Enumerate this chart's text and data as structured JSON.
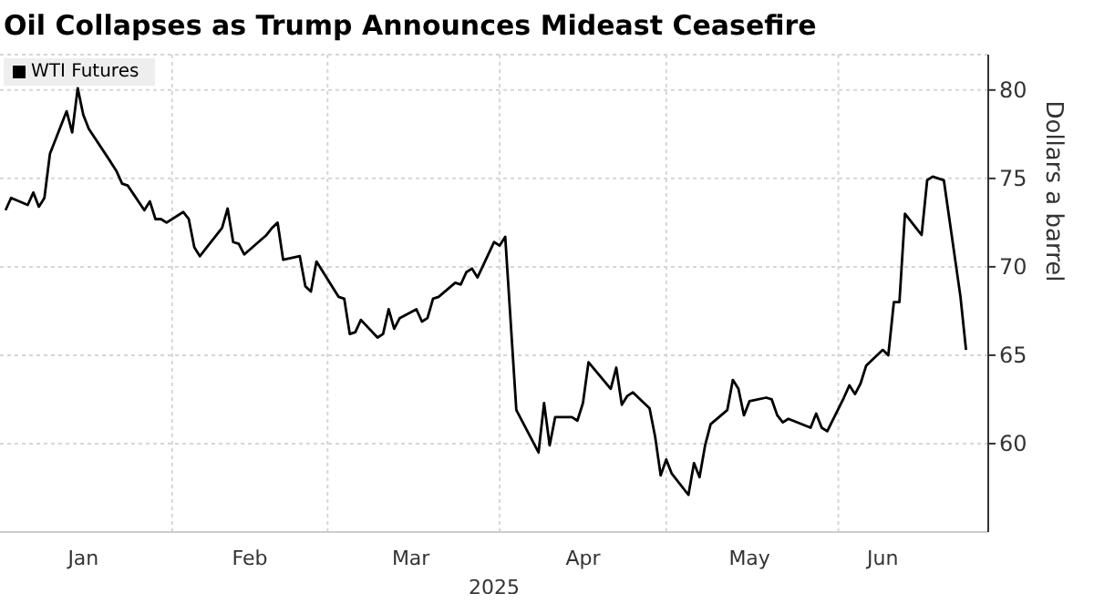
{
  "chart_data": {
    "type": "line",
    "title": "Oil Collapses as Trump Announces Mideast Ceasefire",
    "xlabel": "2025",
    "ylabel": "Dollars a barrel",
    "x": [
      "2025-01-02",
      "2025-01-03",
      "2025-01-06",
      "2025-01-07",
      "2025-01-08",
      "2025-01-09",
      "2025-01-10",
      "2025-01-13",
      "2025-01-14",
      "2025-01-15",
      "2025-01-16",
      "2025-01-17",
      "2025-01-21",
      "2025-01-22",
      "2025-01-23",
      "2025-01-24",
      "2025-01-27",
      "2025-01-28",
      "2025-01-29",
      "2025-01-30",
      "2025-01-31",
      "2025-02-03",
      "2025-02-04",
      "2025-02-05",
      "2025-02-06",
      "2025-02-07",
      "2025-02-10",
      "2025-02-11",
      "2025-02-12",
      "2025-02-13",
      "2025-02-14",
      "2025-02-18",
      "2025-02-19",
      "2025-02-20",
      "2025-02-21",
      "2025-02-24",
      "2025-02-25",
      "2025-02-26",
      "2025-02-27",
      "2025-02-28",
      "2025-03-03",
      "2025-03-04",
      "2025-03-05",
      "2025-03-06",
      "2025-03-07",
      "2025-03-10",
      "2025-03-11",
      "2025-03-12",
      "2025-03-13",
      "2025-03-14",
      "2025-03-17",
      "2025-03-18",
      "2025-03-19",
      "2025-03-20",
      "2025-03-21",
      "2025-03-24",
      "2025-03-25",
      "2025-03-26",
      "2025-03-27",
      "2025-03-28",
      "2025-03-31",
      "2025-04-01",
      "2025-04-02",
      "2025-04-04",
      "2025-04-08",
      "2025-04-09",
      "2025-04-10",
      "2025-04-11",
      "2025-04-14",
      "2025-04-15",
      "2025-04-16",
      "2025-04-17",
      "2025-04-21",
      "2025-04-22",
      "2025-04-23",
      "2025-04-24",
      "2025-04-25",
      "2025-04-28",
      "2025-04-29",
      "2025-04-30",
      "2025-05-01",
      "2025-05-02",
      "2025-05-05",
      "2025-05-06",
      "2025-05-07",
      "2025-05-08",
      "2025-05-09",
      "2025-05-12",
      "2025-05-13",
      "2025-05-14",
      "2025-05-15",
      "2025-05-16",
      "2025-05-19",
      "2025-05-20",
      "2025-05-21",
      "2025-05-22",
      "2025-05-23",
      "2025-05-27",
      "2025-05-28",
      "2025-05-29",
      "2025-05-30",
      "2025-06-02",
      "2025-06-03",
      "2025-06-04",
      "2025-06-05",
      "2025-06-06",
      "2025-06-09",
      "2025-06-10",
      "2025-06-11",
      "2025-06-12",
      "2025-06-13",
      "2025-06-16",
      "2025-06-17",
      "2025-06-18",
      "2025-06-20",
      "2025-06-23",
      "2025-06-24"
    ],
    "series": [
      {
        "name": "WTI Futures",
        "color": "#000000",
        "values": [
          73.2,
          73.9,
          73.5,
          74.2,
          73.4,
          73.9,
          76.4,
          78.8,
          77.6,
          80.1,
          78.6,
          77.8,
          75.9,
          75.4,
          74.7,
          74.6,
          73.2,
          73.7,
          72.7,
          72.7,
          72.5,
          73.1,
          72.7,
          71.1,
          70.6,
          71.0,
          72.2,
          73.3,
          71.4,
          71.3,
          70.7,
          71.8,
          72.2,
          72.5,
          70.4,
          70.6,
          68.9,
          68.6,
          70.3,
          69.8,
          68.3,
          68.2,
          66.2,
          66.3,
          67.0,
          66.0,
          66.2,
          67.6,
          66.5,
          67.1,
          67.6,
          66.9,
          67.1,
          68.2,
          68.3,
          69.1,
          69.0,
          69.7,
          69.9,
          69.4,
          71.4,
          71.2,
          71.7,
          61.9,
          59.5,
          62.3,
          59.9,
          61.5,
          61.5,
          61.3,
          62.3,
          64.6,
          63.1,
          64.3,
          62.2,
          62.7,
          62.9,
          62.0,
          60.4,
          58.2,
          59.1,
          58.3,
          57.1,
          58.9,
          58.1,
          59.9,
          61.1,
          61.9,
          63.6,
          63.1,
          61.6,
          62.4,
          62.6,
          62.5,
          61.6,
          61.2,
          61.4,
          60.9,
          61.7,
          60.9,
          60.7,
          62.6,
          63.3,
          62.8,
          63.4,
          64.4,
          65.3,
          65.0,
          68.0,
          68.0,
          73.0,
          71.8,
          74.9,
          75.1,
          74.9,
          68.3,
          65.3
        ]
      }
    ],
    "xlim": [
      "2025-01-01",
      "2025-06-28"
    ],
    "xticks": [
      {
        "value": "2025-02-01",
        "label": null
      },
      {
        "value": "2025-03-01",
        "label": null
      },
      {
        "value": "2025-04-01",
        "label": null
      },
      {
        "value": "2025-05-01",
        "label": null
      },
      {
        "value": "2025-06-01",
        "label": null
      },
      {
        "value": "2025-01-16",
        "label": "Jan"
      },
      {
        "value": "2025-02-15",
        "label": "Feb"
      },
      {
        "value": "2025-03-16",
        "label": "Mar"
      },
      {
        "value": "2025-04-16",
        "label": "Apr"
      },
      {
        "value": "2025-05-16",
        "label": "May"
      },
      {
        "value": "2025-06-09",
        "label": "Jun"
      }
    ],
    "ylim": [
      55,
      82
    ],
    "yticks": [
      60,
      65,
      70,
      75,
      80
    ],
    "grid": true,
    "legend": "top left",
    "marker": "none",
    "line_style": "solid"
  }
}
